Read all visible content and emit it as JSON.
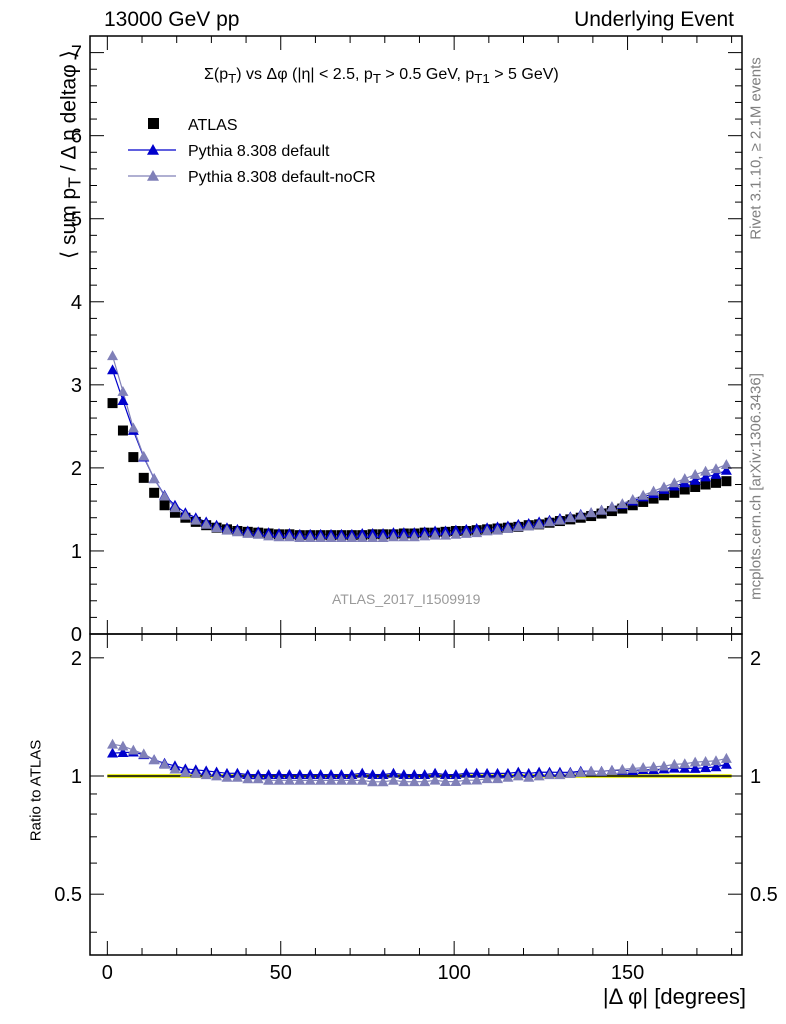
{
  "header": {
    "left": "13000 GeV pp",
    "right": "Underlying Event"
  },
  "side_text": {
    "rivet": "Rivet 3.1.10, ≥ 2.1M events",
    "mcplots": "mcplots.cern.ch [arXiv:1306.3436]"
  },
  "chart_data": {
    "type": "scatter",
    "title": "Σ(pT) vs Δφ (|η| < 2.5, pT > 0.5 GeV, pT1 > 5 GeV)",
    "analysis_label": "ATLAS_2017_I1509919",
    "xlabel": "|Δ φ| [degrees]",
    "ylabel": "⟨ sum pT / Δη deltaφ ⟩",
    "ratio_ylabel": "Ratio to ATLAS",
    "xlim": [
      -5,
      183
    ],
    "ylim": [
      0,
      7.2
    ],
    "ratio_ylim": [
      0.35,
      2.3
    ],
    "x_ticks": [
      "0",
      "50",
      "100",
      "150"
    ],
    "y_ticks": [
      "0",
      "1",
      "2",
      "3",
      "4",
      "5",
      "6",
      "7"
    ],
    "ratio_ticks": [
      "0.5",
      "1",
      "2"
    ],
    "x": [
      1.5,
      4.5,
      7.5,
      10.5,
      13.5,
      16.5,
      19.5,
      22.5,
      25.5,
      28.5,
      31.5,
      34.5,
      37.5,
      40.5,
      43.5,
      46.5,
      49.5,
      52.5,
      55.5,
      58.5,
      61.5,
      64.5,
      67.5,
      70.5,
      73.5,
      76.5,
      79.5,
      82.5,
      85.5,
      88.5,
      91.5,
      94.5,
      97.5,
      100.5,
      103.5,
      106.5,
      109.5,
      112.5,
      115.5,
      118.5,
      121.5,
      124.5,
      127.5,
      130.5,
      133.5,
      136.5,
      139.5,
      142.5,
      145.5,
      148.5,
      151.5,
      154.5,
      157.5,
      160.5,
      163.5,
      166.5,
      169.5,
      172.5,
      175.5,
      178.5
    ],
    "series": [
      {
        "name": "ATLAS",
        "color": "#000000",
        "marker": "square",
        "values": [
          2.78,
          2.45,
          2.13,
          1.88,
          1.7,
          1.55,
          1.46,
          1.4,
          1.35,
          1.31,
          1.28,
          1.26,
          1.24,
          1.23,
          1.22,
          1.21,
          1.2,
          1.2,
          1.19,
          1.19,
          1.19,
          1.19,
          1.19,
          1.19,
          1.19,
          1.2,
          1.2,
          1.2,
          1.21,
          1.21,
          1.22,
          1.22,
          1.23,
          1.24,
          1.24,
          1.25,
          1.26,
          1.27,
          1.28,
          1.29,
          1.31,
          1.32,
          1.34,
          1.36,
          1.38,
          1.4,
          1.42,
          1.45,
          1.48,
          1.51,
          1.55,
          1.59,
          1.63,
          1.67,
          1.7,
          1.74,
          1.77,
          1.8,
          1.82,
          1.84
        ]
      },
      {
        "name": "Pythia 8.308 default",
        "color": "#0000cc",
        "marker": "triangle",
        "values": [
          3.18,
          2.81,
          2.45,
          2.13,
          1.87,
          1.67,
          1.55,
          1.46,
          1.4,
          1.35,
          1.31,
          1.28,
          1.26,
          1.24,
          1.23,
          1.22,
          1.21,
          1.21,
          1.2,
          1.2,
          1.2,
          1.2,
          1.2,
          1.2,
          1.21,
          1.21,
          1.21,
          1.22,
          1.22,
          1.22,
          1.23,
          1.24,
          1.24,
          1.25,
          1.26,
          1.27,
          1.28,
          1.29,
          1.3,
          1.32,
          1.33,
          1.35,
          1.37,
          1.39,
          1.41,
          1.44,
          1.46,
          1.49,
          1.53,
          1.56,
          1.6,
          1.65,
          1.69,
          1.74,
          1.78,
          1.82,
          1.85,
          1.89,
          1.92,
          1.97
        ]
      },
      {
        "name": "Pythia 8.308 default-noCR",
        "color": "#8080b8",
        "marker": "triangle",
        "values": [
          3.35,
          2.92,
          2.48,
          2.14,
          1.87,
          1.66,
          1.52,
          1.43,
          1.37,
          1.32,
          1.28,
          1.25,
          1.23,
          1.21,
          1.2,
          1.18,
          1.17,
          1.17,
          1.16,
          1.16,
          1.16,
          1.16,
          1.16,
          1.16,
          1.16,
          1.16,
          1.16,
          1.17,
          1.17,
          1.17,
          1.18,
          1.19,
          1.19,
          1.2,
          1.21,
          1.22,
          1.24,
          1.25,
          1.27,
          1.29,
          1.3,
          1.32,
          1.35,
          1.37,
          1.4,
          1.43,
          1.46,
          1.49,
          1.53,
          1.57,
          1.62,
          1.67,
          1.72,
          1.77,
          1.82,
          1.87,
          1.92,
          1.96,
          1.99,
          2.04
        ]
      }
    ],
    "ratio_band_color": "#e8f028",
    "grid": false,
    "legend_position": "top-left"
  }
}
